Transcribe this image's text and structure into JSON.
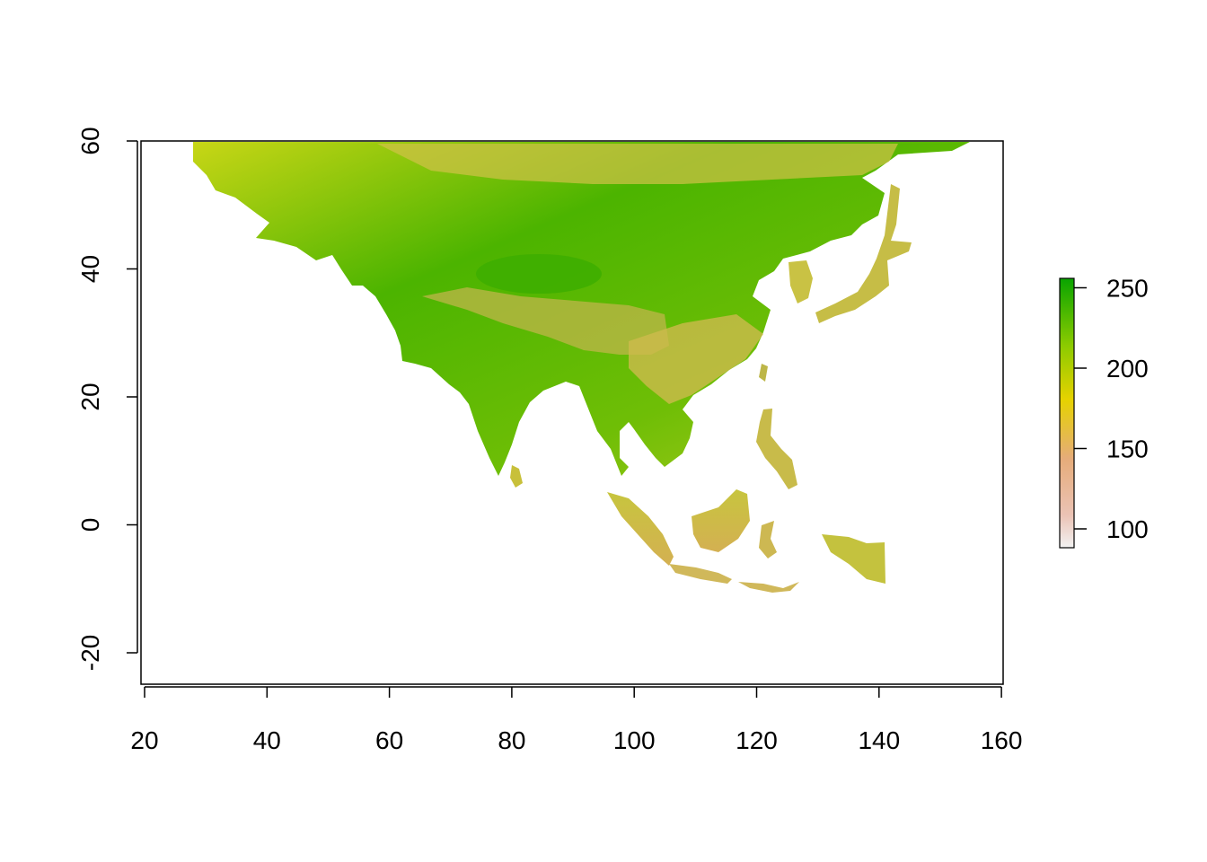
{
  "map": {
    "x_ticks": [
      "20",
      "40",
      "60",
      "80",
      "100",
      "120",
      "140",
      "160"
    ],
    "y_ticks": [
      "-20",
      "0",
      "20",
      "40",
      "60"
    ],
    "x_range": [
      20,
      160
    ],
    "y_range": [
      -25,
      60
    ],
    "colors": {
      "low": "#F2F2F2",
      "mid_low": "#E6AC7A",
      "mid": "#E6D200",
      "high": "#09A400"
    }
  },
  "legend": {
    "ticks": [
      "100",
      "150",
      "200",
      "250"
    ],
    "range": [
      85,
      255
    ]
  }
}
